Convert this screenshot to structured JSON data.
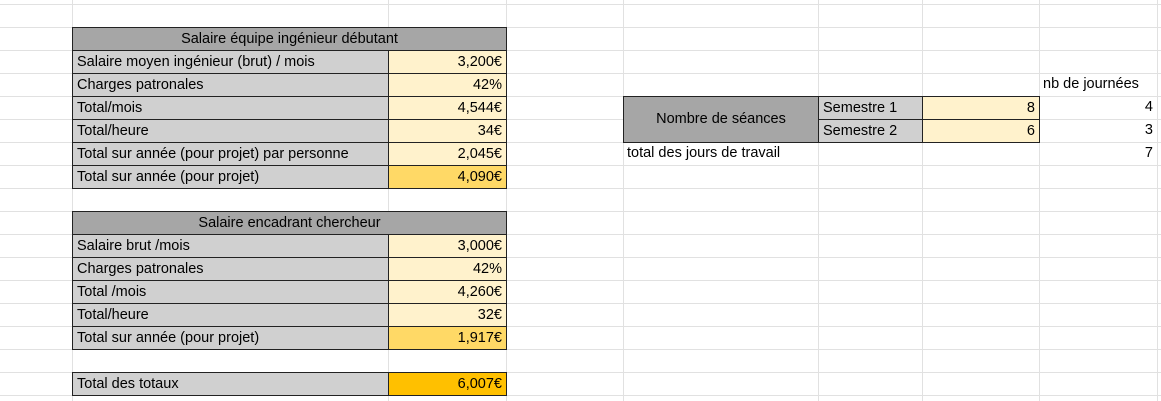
{
  "salaire_ingenieur": {
    "header": "Salaire équipe ingénieur débutant",
    "rows": [
      {
        "label": "Salaire moyen ingénieur (brut) / mois",
        "value": "3,200€"
      },
      {
        "label": "Charges patronales",
        "value": "42%"
      },
      {
        "label": "Total/mois",
        "value": "4,544€"
      },
      {
        "label": "Total/heure",
        "value": "34€"
      },
      {
        "label": "Total sur année (pour projet) par personne",
        "value": "2,045€"
      },
      {
        "label": "Total sur année (pour projet)",
        "value": "4,090€"
      }
    ]
  },
  "salaire_encadrant": {
    "header": "Salaire encadrant chercheur",
    "rows": [
      {
        "label": "Salaire brut /mois",
        "value": "3,000€"
      },
      {
        "label": "Charges patronales",
        "value": "42%"
      },
      {
        "label": "Total /mois",
        "value": "4,260€"
      },
      {
        "label": "Total/heure",
        "value": "32€"
      },
      {
        "label": "Total sur année (pour projet)",
        "value": "1,917€"
      }
    ]
  },
  "total": {
    "label": "Total des totaux",
    "value": "6,007€"
  },
  "seances": {
    "nb_journees_header": "nb de journées",
    "label": "Nombre de séances",
    "rows": [
      {
        "semestre": "Semestre 1",
        "seances": "8",
        "journees": "4"
      },
      {
        "semestre": "Semestre 2",
        "seances": "6",
        "journees": "3"
      }
    ],
    "total_label": "total des jours de travail",
    "total_value": "7"
  },
  "colors": {
    "label_fill": "#d0d0d0",
    "value_fill": "#fff2cc",
    "header_fill": "#a6a6a6",
    "annual_total_fill": "#ffd966",
    "grand_total_fill": "#ffc000"
  }
}
